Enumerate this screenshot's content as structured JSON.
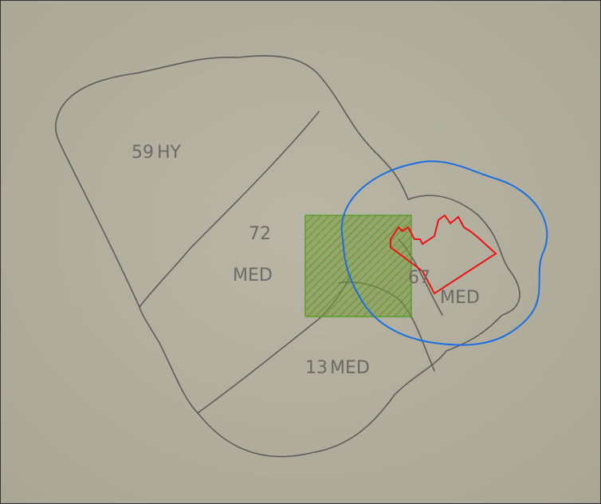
{
  "regions": [
    {
      "number": "59",
      "code": "HY"
    },
    {
      "number": "72",
      "code": "MED"
    },
    {
      "number": "67",
      "code": "MED"
    },
    {
      "number": "13",
      "code": "MED"
    }
  ]
}
